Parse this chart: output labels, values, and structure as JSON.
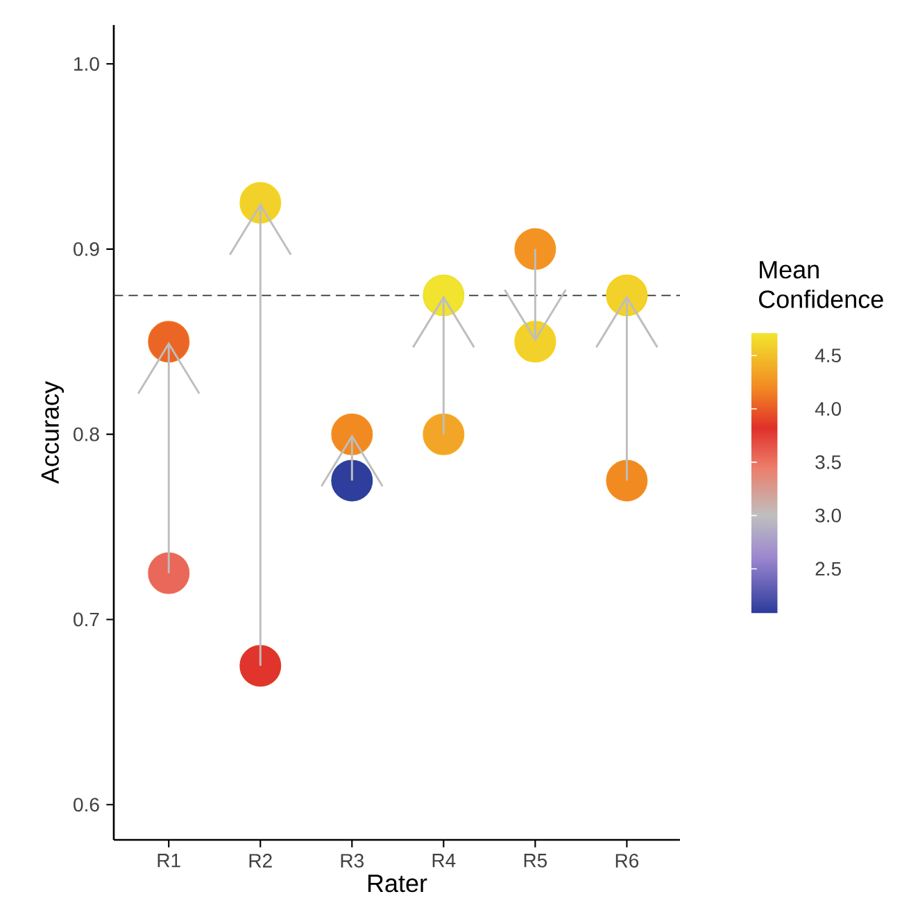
{
  "chart_data": {
    "type": "scatter",
    "xlabel": "Rater",
    "ylabel": "Accuracy",
    "clabel": "Mean Confidence",
    "categories": [
      "R1",
      "R2",
      "R3",
      "R4",
      "R5",
      "R6"
    ],
    "ylim": [
      0.581,
      1.021
    ],
    "yticks": [
      0.6,
      0.7,
      0.8,
      0.9,
      {
        "value": 1.0,
        "label": "1.0"
      }
    ],
    "clim": [
      2.08,
      4.71
    ],
    "cticks": [
      2.5,
      {
        "value": 3.0,
        "label": "3.0"
      },
      3.5,
      {
        "value": 4.0,
        "label": "4.0"
      },
      4.5
    ],
    "marker": "circle",
    "ref_lines": [
      {
        "axis": "y",
        "value": 0.875,
        "line_style": "dashed",
        "color": "#333333"
      }
    ],
    "series": [
      {
        "values": [
          0.725,
          0.675,
          0.775,
          0.8,
          0.9,
          0.775
        ],
        "cvalues": [
          3.55,
          3.8,
          2.1,
          4.35,
          4.25,
          4.2
        ],
        "colors": [
          "#f06a50",
          "#e03a25",
          "#2d40a0",
          "#f8ab20",
          "#f29a25",
          "#f29020"
        ]
      },
      {
        "values": [
          0.85,
          0.925,
          0.8,
          0.875,
          0.85,
          0.875
        ],
        "cvalues": [
          4.05,
          4.6,
          4.2,
          4.7,
          4.6,
          4.6
        ],
        "colors": [
          "#f07520",
          "#f9d818",
          "#f29020",
          "#e9e030",
          "#f9d20e",
          "#f7d10b"
        ]
      }
    ]
  }
}
